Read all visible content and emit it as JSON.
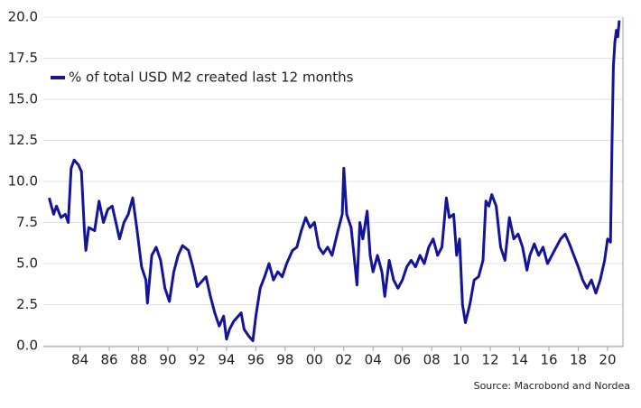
{
  "chart_data": {
    "type": "line",
    "legend_label": "% of total USD M2 created last 12 months",
    "source": "Source: Macrobond and Nordea",
    "legend_position": "upper left",
    "grid": true,
    "xlim": [
      1981.5,
      2021.05
    ],
    "ylim": [
      0,
      20
    ],
    "yticks": [
      {
        "value": 0,
        "label": "0.0"
      },
      2.5,
      {
        "value": 5,
        "label": "5.0"
      },
      7.5,
      {
        "value": 10,
        "label": "10.0"
      },
      12.5,
      {
        "value": 15,
        "label": "15.0"
      },
      17.5,
      {
        "value": 20,
        "label": "20.0"
      }
    ],
    "xticks": [
      {
        "value": 1984,
        "label": "84"
      },
      {
        "value": 1986,
        "label": "86"
      },
      {
        "value": 1988,
        "label": "88"
      },
      {
        "value": 1990,
        "label": "90"
      },
      {
        "value": 1992,
        "label": "92"
      },
      {
        "value": 1994,
        "label": "94"
      },
      {
        "value": 1996,
        "label": "96"
      },
      {
        "value": 1998,
        "label": "98"
      },
      {
        "value": 2000,
        "label": "00"
      },
      {
        "value": 2002,
        "label": "02"
      },
      {
        "value": 2004,
        "label": "04"
      },
      {
        "value": 2006,
        "label": "06"
      },
      {
        "value": 2008,
        "label": "08"
      },
      {
        "value": 2010,
        "label": "10"
      },
      {
        "value": 2012,
        "label": "12"
      },
      {
        "value": 2014,
        "label": "14"
      },
      {
        "value": 2016,
        "label": "16"
      },
      {
        "value": 2018,
        "label": "18"
      },
      {
        "value": 2020,
        "label": "20"
      }
    ],
    "series": [
      {
        "name": "% of total USD M2 created last 12 months",
        "color": "#14149a",
        "x": [
          1981.9,
          1982.2,
          1982.4,
          1982.7,
          1983.0,
          1983.2,
          1983.4,
          1983.6,
          1983.9,
          1984.1,
          1984.3,
          1984.4,
          1984.6,
          1985.0,
          1985.3,
          1985.6,
          1985.9,
          1986.2,
          1986.5,
          1986.7,
          1987.0,
          1987.3,
          1987.6,
          1987.9,
          1988.2,
          1988.5,
          1988.6,
          1988.9,
          1989.2,
          1989.5,
          1989.8,
          1990.1,
          1990.4,
          1990.7,
          1991.0,
          1991.4,
          1991.7,
          1992.0,
          1992.3,
          1992.6,
          1992.9,
          1993.2,
          1993.5,
          1993.8,
          1994.0,
          1994.2,
          1994.5,
          1994.8,
          1995.0,
          1995.2,
          1995.5,
          1995.8,
          1996.0,
          1996.3,
          1996.6,
          1996.9,
          1997.2,
          1997.5,
          1997.8,
          1998.1,
          1998.5,
          1998.8,
          1999.1,
          1999.4,
          1999.7,
          2000.0,
          2000.3,
          2000.6,
          2000.9,
          2001.2,
          2001.6,
          2001.9,
          2002.0,
          2002.2,
          2002.5,
          2002.7,
          2002.9,
          2003.1,
          2003.3,
          2003.6,
          2003.8,
          2004.0,
          2004.3,
          2004.6,
          2004.8,
          2005.1,
          2005.4,
          2005.7,
          2006.0,
          2006.3,
          2006.6,
          2006.9,
          2007.2,
          2007.5,
          2007.8,
          2008.1,
          2008.4,
          2008.7,
          2009.0,
          2009.2,
          2009.5,
          2009.7,
          2009.9,
          2010.1,
          2010.3,
          2010.6,
          2010.9,
          2011.2,
          2011.5,
          2011.7,
          2011.9,
          2012.1,
          2012.4,
          2012.7,
          2013.0,
          2013.3,
          2013.6,
          2013.9,
          2014.2,
          2014.5,
          2014.7,
          2015.0,
          2015.3,
          2015.6,
          2015.9,
          2016.2,
          2016.5,
          2016.8,
          2017.1,
          2017.4,
          2017.7,
          2018.0,
          2018.3,
          2018.6,
          2018.9,
          2019.2,
          2019.5,
          2019.8,
          2020.0,
          2020.2,
          2020.3,
          2020.4,
          2020.5,
          2020.6,
          2020.7,
          2020.8
        ],
        "values": [
          9.0,
          8.0,
          8.5,
          7.8,
          8.0,
          7.5,
          10.8,
          11.3,
          11.0,
          10.6,
          7.0,
          5.8,
          7.2,
          7.0,
          8.8,
          7.5,
          8.3,
          8.5,
          7.3,
          6.5,
          7.5,
          8.0,
          9.0,
          7.0,
          4.8,
          4.0,
          2.6,
          5.5,
          6.0,
          5.2,
          3.5,
          2.7,
          4.5,
          5.5,
          6.1,
          5.8,
          4.8,
          3.6,
          3.9,
          4.2,
          3.0,
          2.0,
          1.2,
          1.8,
          0.4,
          1.0,
          1.5,
          1.8,
          2.0,
          1.0,
          0.6,
          0.3,
          1.8,
          3.5,
          4.2,
          5.0,
          4.0,
          4.5,
          4.2,
          5.0,
          5.8,
          6.0,
          7.0,
          7.8,
          7.2,
          7.5,
          6.0,
          5.6,
          6.0,
          5.5,
          7.0,
          8.0,
          10.8,
          8.0,
          7.2,
          5.5,
          3.7,
          7.5,
          6.5,
          8.2,
          5.5,
          4.5,
          5.5,
          4.5,
          3.0,
          5.2,
          4.0,
          3.5,
          4.0,
          4.8,
          5.2,
          4.8,
          5.5,
          5.0,
          6.0,
          6.5,
          5.5,
          6.0,
          9.0,
          7.8,
          8.0,
          5.5,
          6.5,
          2.5,
          1.4,
          2.5,
          4.0,
          4.2,
          5.2,
          8.8,
          8.5,
          9.2,
          8.5,
          6.0,
          5.2,
          7.8,
          6.5,
          6.8,
          6.0,
          4.6,
          5.5,
          6.2,
          5.5,
          6.0,
          5.0,
          5.5,
          6.0,
          6.5,
          6.8,
          6.2,
          5.5,
          4.8,
          4.0,
          3.5,
          4.0,
          3.2,
          4.0,
          5.2,
          6.5,
          6.3,
          12.0,
          17.0,
          18.5,
          19.2,
          18.8,
          19.8
        ]
      }
    ]
  }
}
